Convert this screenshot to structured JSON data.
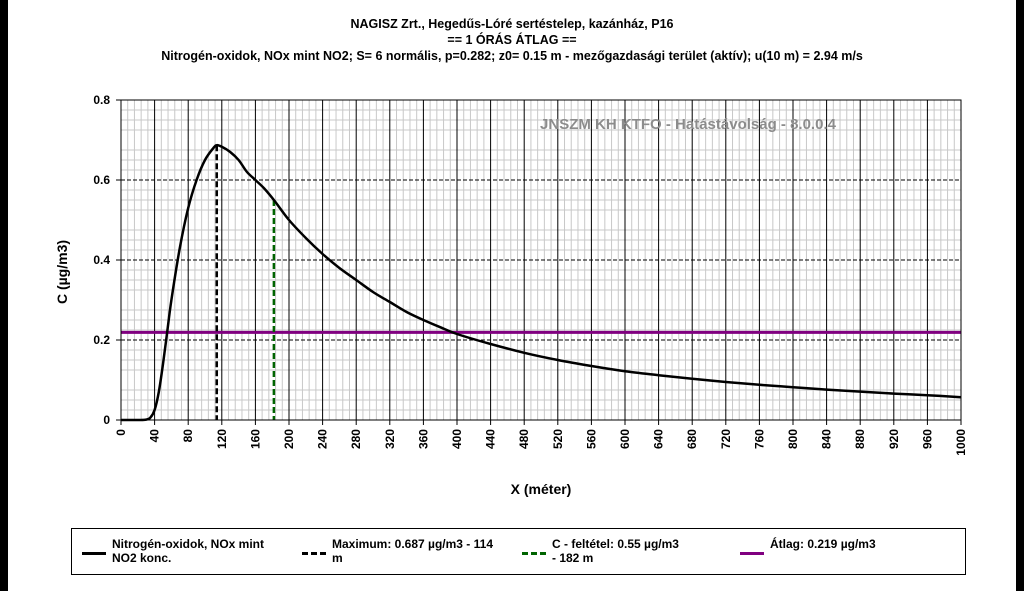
{
  "chart_data": {
    "type": "line",
    "title": "NAGISZ Zrt., Hegedűs-Lóré sertéstelep, kazánház, P16",
    "subtitle": "== 1 ÓRÁS ÁTLAG ==",
    "subtitle2": "Nitrogén-oxidok, NOx mint NO2; S= 6 normális, p=0.282; z0= 0.15 m - mezőgazdasági terület (aktív); u(10 m) = 2.94 m/s",
    "xlabel": "X (méter)",
    "ylabel": "C (µg/m3)",
    "xlim": [
      0,
      1000
    ],
    "ylim": [
      0,
      0.8
    ],
    "x_ticks": [
      0,
      40,
      80,
      120,
      160,
      200,
      240,
      280,
      320,
      360,
      400,
      440,
      480,
      520,
      560,
      600,
      640,
      680,
      720,
      760,
      800,
      840,
      880,
      920,
      960,
      1000
    ],
    "x_tick_labels": [
      "0",
      "40",
      "80",
      "120",
      "160",
      "200",
      "240",
      "280",
      "320",
      "360",
      "400",
      "440",
      "480",
      "520",
      "560",
      "600",
      "640",
      "680",
      "720",
      "760",
      "800",
      "840",
      "880",
      "920",
      "960",
      "1000"
    ],
    "y_ticks": [
      0,
      0.2,
      0.4,
      0.6,
      0.8
    ],
    "y_tick_labels": [
      "0",
      "0.2",
      "0.4",
      "0.6",
      "0.8"
    ],
    "watermark": "JNSZM KH KTFO - Hatástávolság  - 8.0.0.4",
    "series": [
      {
        "name": "Nitrogén-oxidok, NOx mint NO2 konc.",
        "color": "#000000",
        "x": [
          0,
          20,
          30,
          35,
          40,
          45,
          50,
          55,
          60,
          70,
          80,
          90,
          100,
          110,
          114,
          120,
          130,
          140,
          150,
          160,
          170,
          182,
          200,
          220,
          240,
          260,
          280,
          300,
          320,
          340,
          360,
          380,
          400,
          440,
          480,
          520,
          560,
          600,
          640,
          680,
          720,
          760,
          800,
          840,
          880,
          920,
          960,
          1000
        ],
        "y": [
          0,
          0,
          0.001,
          0.006,
          0.025,
          0.07,
          0.14,
          0.22,
          0.3,
          0.43,
          0.53,
          0.6,
          0.65,
          0.68,
          0.687,
          0.683,
          0.67,
          0.65,
          0.62,
          0.6,
          0.58,
          0.55,
          0.5,
          0.455,
          0.415,
          0.38,
          0.35,
          0.32,
          0.295,
          0.27,
          0.25,
          0.232,
          0.215,
          0.19,
          0.168,
          0.15,
          0.135,
          0.122,
          0.112,
          0.103,
          0.095,
          0.088,
          0.082,
          0.076,
          0.071,
          0.066,
          0.062,
          0.057
        ]
      }
    ],
    "reference_lines": [
      {
        "name": "Maximum",
        "orientation": "vertical",
        "x": 114,
        "y_top": 0.687,
        "color": "#000000",
        "style": "dashed"
      },
      {
        "name": "C - feltétel",
        "orientation": "vertical",
        "x": 182,
        "y_top": 0.55,
        "color": "#006400",
        "style": "dashed"
      },
      {
        "name": "Átlag",
        "orientation": "horizontal",
        "y": 0.219,
        "color": "#800080",
        "style": "solid"
      }
    ],
    "legend": [
      {
        "label": "Nitrogén-oxidok, NOx mint NO2 konc.",
        "line1": "Nitrogén-oxidok, NOx mint",
        "line2": "NO2 konc.",
        "color": "#000000",
        "style": "solid"
      },
      {
        "label": "Maximum: 0.687 µg/m3 - 114 m",
        "line1": "Maximum: 0.687 µg/m3 - 114",
        "line2": "m",
        "color": "#000000",
        "style": "dashed"
      },
      {
        "label": "C - feltétel: 0.55 µg/m3 - 182 m",
        "line1": "C - feltétel: 0.55 µg/m3",
        "line2": "- 182 m",
        "color": "#006400",
        "style": "dashed"
      },
      {
        "label": "Átlag: 0.219 µg/m3",
        "line1": "Átlag: 0.219 µg/m3",
        "line2": "",
        "color": "#800080",
        "style": "solid"
      }
    ]
  }
}
